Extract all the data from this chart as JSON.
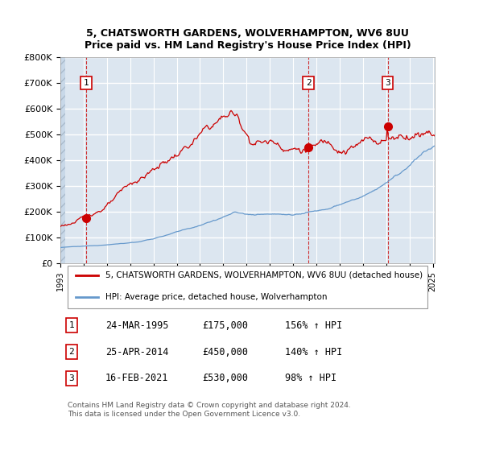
{
  "title1": "5, CHATSWORTH GARDENS, WOLVERHAMPTON, WV6 8UU",
  "title2": "Price paid vs. HM Land Registry's House Price Index (HPI)",
  "ylabel": "",
  "bg_color": "#dce6f0",
  "plot_bg": "#dce6f0",
  "red_line_color": "#cc0000",
  "blue_line_color": "#6699cc",
  "sale_dates": [
    "1995-03-24",
    "2014-04-25",
    "2021-02-16"
  ],
  "sale_prices": [
    175000,
    450000,
    530000
  ],
  "sale_labels": [
    "1",
    "2",
    "3"
  ],
  "sale_hpi_pct": [
    "156% ↑ HPI",
    "140% ↑ HPI",
    "98% ↑ HPI"
  ],
  "sale_date_labels": [
    "24-MAR-1995",
    "25-APR-2014",
    "16-FEB-2021"
  ],
  "sale_price_labels": [
    "£175,000",
    "£450,000",
    "£530,000"
  ],
  "legend_red": "5, CHATSWORTH GARDENS, WOLVERHAMPTON, WV6 8UU (detached house)",
  "legend_blue": "HPI: Average price, detached house, Wolverhampton",
  "footer": "Contains HM Land Registry data © Crown copyright and database right 2024.\nThis data is licensed under the Open Government Licence v3.0.",
  "ylim": [
    0,
    800000
  ],
  "yticks": [
    0,
    100000,
    200000,
    300000,
    400000,
    500000,
    600000,
    700000,
    800000
  ],
  "ytick_labels": [
    "£0",
    "£100K",
    "£200K",
    "£300K",
    "£400K",
    "£500K",
    "£600K",
    "£700K",
    "£800K"
  ],
  "hatch_color": "#aabbcc",
  "grid_color": "#ffffff",
  "grid_minor_color": "#e8eef5"
}
